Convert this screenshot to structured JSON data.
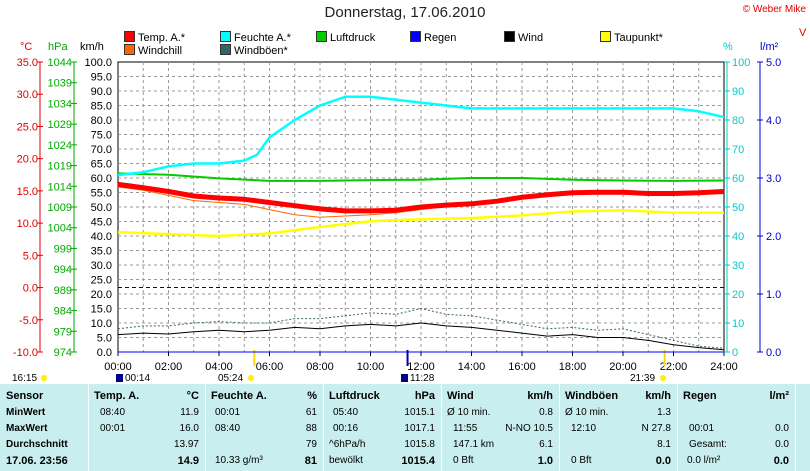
{
  "title": "Donnerstag, 17.06.2010",
  "copyright": "© Weber Mike",
  "axis_units": {
    "c": "°C",
    "hpa": "hPa",
    "kmh": "km/h",
    "pct": "%",
    "lm2": "l/m²"
  },
  "legend": [
    {
      "label": "Temp. A.*",
      "color": "#ff0000"
    },
    {
      "label": "Feuchte A.*",
      "color": "#00ffff"
    },
    {
      "label": "Luftdruck",
      "color": "#00cc00"
    },
    {
      "label": "Regen",
      "color": "#0000ff"
    },
    {
      "label": "Wind",
      "color": "#000000"
    },
    {
      "label": "Taupunkt*",
      "color": "#ffff00"
    },
    {
      "label": "Windchill",
      "color": "#ff6600"
    },
    {
      "label": "Windböen*",
      "color": "#336666"
    }
  ],
  "right_edge_letter": "V",
  "sun_events": {
    "sunrise": "05:24",
    "sunset": "21:39",
    "moonrise": "00:14",
    "moonset": "11:28",
    "daylength": "16:15"
  },
  "colors": {
    "temp": "#ff0000",
    "humidity": "#00ffff",
    "pressure": "#00cc00",
    "rain": "#0000ff",
    "wind": "#000000",
    "dewpoint": "#ffff00",
    "windchill": "#ff6600",
    "gusts": "#336666",
    "table_bg": "#c8eef0"
  },
  "chart_data": {
    "type": "line",
    "x_ticks": [
      "00:00",
      "02:00",
      "04:00",
      "06:00",
      "08:00",
      "10:00",
      "12:00",
      "14:00",
      "16:00",
      "18:00",
      "20:00",
      "22:00",
      "24:00"
    ],
    "axes": {
      "celsius": {
        "range": [
          -10,
          35
        ],
        "ticks": [
          "-10.0",
          "-5.0",
          "0.0",
          "5.0",
          "10.0",
          "15.0",
          "20.0",
          "25.0",
          "30.0",
          "35.0"
        ]
      },
      "hpa": {
        "range": [
          974,
          1044
        ],
        "ticks": [
          "974",
          "979",
          "984",
          "989",
          "994",
          "999",
          "1004",
          "1009",
          "1014",
          "1019",
          "1024",
          "1029",
          "1034",
          "1039",
          "1044"
        ]
      },
      "kmh": {
        "range": [
          0,
          100
        ],
        "ticks": [
          "0.0",
          "5.0",
          "10.0",
          "15.0",
          "20.0",
          "25.0",
          "30.0",
          "35.0",
          "40.0",
          "45.0",
          "50.0",
          "55.0",
          "60.0",
          "65.0",
          "70.0",
          "75.0",
          "80.0",
          "85.0",
          "90.0",
          "95.0",
          "100.0"
        ]
      },
      "pct": {
        "range": [
          0,
          100
        ],
        "ticks": [
          "0",
          "10",
          "20",
          "30",
          "40",
          "50",
          "60",
          "70",
          "80",
          "90",
          "100"
        ]
      },
      "lm2": {
        "range": [
          0,
          5
        ],
        "ticks": [
          "0.0",
          "1.0",
          "2.0",
          "3.0",
          "4.0",
          "5.0"
        ]
      }
    },
    "series": [
      {
        "name": "Temp. A.*",
        "axis": "celsius",
        "x": [
          "00:00",
          "01:00",
          "02:00",
          "03:00",
          "04:00",
          "05:00",
          "06:00",
          "07:00",
          "08:00",
          "09:00",
          "10:00",
          "11:00",
          "12:00",
          "13:00",
          "14:00",
          "15:00",
          "16:00",
          "17:00",
          "18:00",
          "19:00",
          "20:00",
          "21:00",
          "22:00",
          "23:00",
          "24:00"
        ],
        "values": [
          16.0,
          15.5,
          14.9,
          14.2,
          13.9,
          13.7,
          13.2,
          12.7,
          12.2,
          11.9,
          11.9,
          12.0,
          12.5,
          12.8,
          13.0,
          13.4,
          14.0,
          14.4,
          14.7,
          14.8,
          14.8,
          14.6,
          14.6,
          14.7,
          14.9
        ]
      },
      {
        "name": "Feuchte A.*",
        "axis": "pct",
        "x": [
          "00:00",
          "01:00",
          "02:00",
          "03:00",
          "04:00",
          "05:00",
          "05:30",
          "06:00",
          "07:00",
          "08:00",
          "09:00",
          "10:00",
          "11:00",
          "12:00",
          "13:00",
          "14:00",
          "15:00",
          "16:00",
          "17:00",
          "18:00",
          "19:00",
          "20:00",
          "21:00",
          "22:00",
          "23:00",
          "24:00"
        ],
        "values": [
          61,
          62,
          64,
          65,
          65,
          66,
          68,
          74,
          80,
          85,
          88,
          88,
          87,
          86,
          85,
          84,
          84,
          84,
          84,
          84,
          84,
          84,
          84,
          84,
          83,
          81
        ]
      },
      {
        "name": "Luftdruck",
        "axis": "hpa",
        "x": [
          "00:00",
          "02:00",
          "04:00",
          "06:00",
          "08:00",
          "10:00",
          "12:00",
          "14:00",
          "16:00",
          "18:00",
          "20:00",
          "22:00",
          "24:00"
        ],
        "values": [
          1017.1,
          1016.8,
          1015.9,
          1015.3,
          1015.3,
          1015.5,
          1015.6,
          1016.0,
          1016.0,
          1015.6,
          1015.4,
          1015.3,
          1015.4
        ]
      },
      {
        "name": "Taupunkt*",
        "axis": "celsius",
        "x": [
          "00:00",
          "02:00",
          "04:00",
          "06:00",
          "08:00",
          "10:00",
          "12:00",
          "14:00",
          "16:00",
          "18:00",
          "20:00",
          "22:00",
          "24:00"
        ],
        "values": [
          8.6,
          8.3,
          8.0,
          8.4,
          9.4,
          10.3,
          10.6,
          10.8,
          11.2,
          11.8,
          12.0,
          11.6,
          11.6
        ]
      },
      {
        "name": "Windchill",
        "axis": "celsius",
        "x": [
          "00:00",
          "01:00",
          "02:00",
          "03:00",
          "04:00",
          "05:00",
          "06:00",
          "07:00",
          "08:00",
          "09:00",
          "10:00",
          "11:00",
          "12:00",
          "13:00",
          "14:00",
          "15:00",
          "16:00"
        ],
        "values": [
          15.6,
          15.1,
          14.3,
          13.5,
          13.2,
          12.9,
          12.1,
          11.3,
          10.9,
          11.1,
          11.3,
          11.6,
          12.1,
          12.6,
          12.9,
          13.4,
          13.9
        ]
      },
      {
        "name": "Wind",
        "axis": "kmh",
        "x": [
          "00:00",
          "01:00",
          "02:00",
          "03:00",
          "04:00",
          "05:00",
          "06:00",
          "07:00",
          "08:00",
          "09:00",
          "10:00",
          "11:00",
          "12:00",
          "13:00",
          "14:00",
          "15:00",
          "16:00",
          "17:00",
          "18:00",
          "19:00",
          "20:00",
          "21:00",
          "22:00",
          "23:00",
          "24:00"
        ],
        "values": [
          6.0,
          6.5,
          6.2,
          7.0,
          7.5,
          7.0,
          7.5,
          8.5,
          8.0,
          9.0,
          9.5,
          9.0,
          10.0,
          9.0,
          8.5,
          7.5,
          6.5,
          5.5,
          6.0,
          5.0,
          5.0,
          4.0,
          2.5,
          1.5,
          0.8
        ]
      },
      {
        "name": "Windböen*",
        "axis": "kmh",
        "x": [
          "00:00",
          "01:00",
          "02:00",
          "03:00",
          "04:00",
          "05:00",
          "06:00",
          "07:00",
          "08:00",
          "09:00",
          "10:00",
          "11:00",
          "12:00",
          "13:00",
          "14:00",
          "15:00",
          "16:00",
          "17:00",
          "18:00",
          "19:00",
          "20:00",
          "21:00",
          "22:00",
          "23:00",
          "24:00"
        ],
        "values": [
          8.0,
          9.0,
          9.0,
          10.0,
          10.5,
          10.0,
          10.0,
          11.5,
          11.5,
          12.5,
          13.5,
          13.0,
          15.0,
          13.0,
          12.5,
          11.0,
          9.5,
          8.0,
          8.5,
          7.5,
          8.0,
          6.0,
          4.0,
          2.0,
          1.3
        ]
      },
      {
        "name": "Regen",
        "axis": "lm2",
        "x": [
          "00:00",
          "24:00"
        ],
        "values": [
          0.0,
          0.0
        ]
      }
    ],
    "grid": true
  },
  "table": {
    "row_labels": [
      "Sensor",
      "MinWert",
      "MaxWert",
      "Durchschnitt",
      "17.06. 23:56"
    ],
    "temp": {
      "header": "Temp. A.",
      "unit": "°C",
      "min_time": "08:40",
      "min": "11.9",
      "max_time": "00:01",
      "max": "16.0",
      "avg": "13.97",
      "current": "14.9"
    },
    "humidity": {
      "header": "Feuchte A.",
      "unit": "%",
      "min_time": "00:01",
      "min": "61",
      "max_time": "08:40",
      "max": "88",
      "avg": "79",
      "current_extra": "10.33 g/m³",
      "current": "81"
    },
    "pressure": {
      "header": "Luftdruck",
      "unit": "hPa",
      "min_time": "05:40",
      "min": "1015.1",
      "max_time": "00:16",
      "max": "1017.1",
      "avg_label": "^6hPa/h",
      "avg": "1015.8",
      "current_label": "bewölkt",
      "current": "1015.4"
    },
    "wind": {
      "header": "Wind",
      "unit": "km/h",
      "r1_label": "Ø 10 min.",
      "r1_value": "0.8",
      "r2_time": "11:55",
      "r2_dir": "N-NO 10.5",
      "r3_label": "147.1 km",
      "r3_value": "6.1",
      "r4_label": "0 Bft",
      "r4_value": "1.0"
    },
    "gusts": {
      "header": "Windböen",
      "unit": "km/h",
      "r1_label": "Ø 10 min.",
      "r1_value": "1.3",
      "r2_time": "12:10",
      "r2_dir": "N 27.8",
      "r3_value": "8.1",
      "r4_label": "0 Bft",
      "r4_value": "0.0"
    },
    "rain": {
      "header": "Regen",
      "unit": "l/m²",
      "r2_time": "00:01",
      "r2_value": "0.0",
      "r3_label": "Gesamt:",
      "r3_value": "0.0",
      "r4_label": "0.0 l/m²",
      "r4_value": "0.0"
    }
  }
}
